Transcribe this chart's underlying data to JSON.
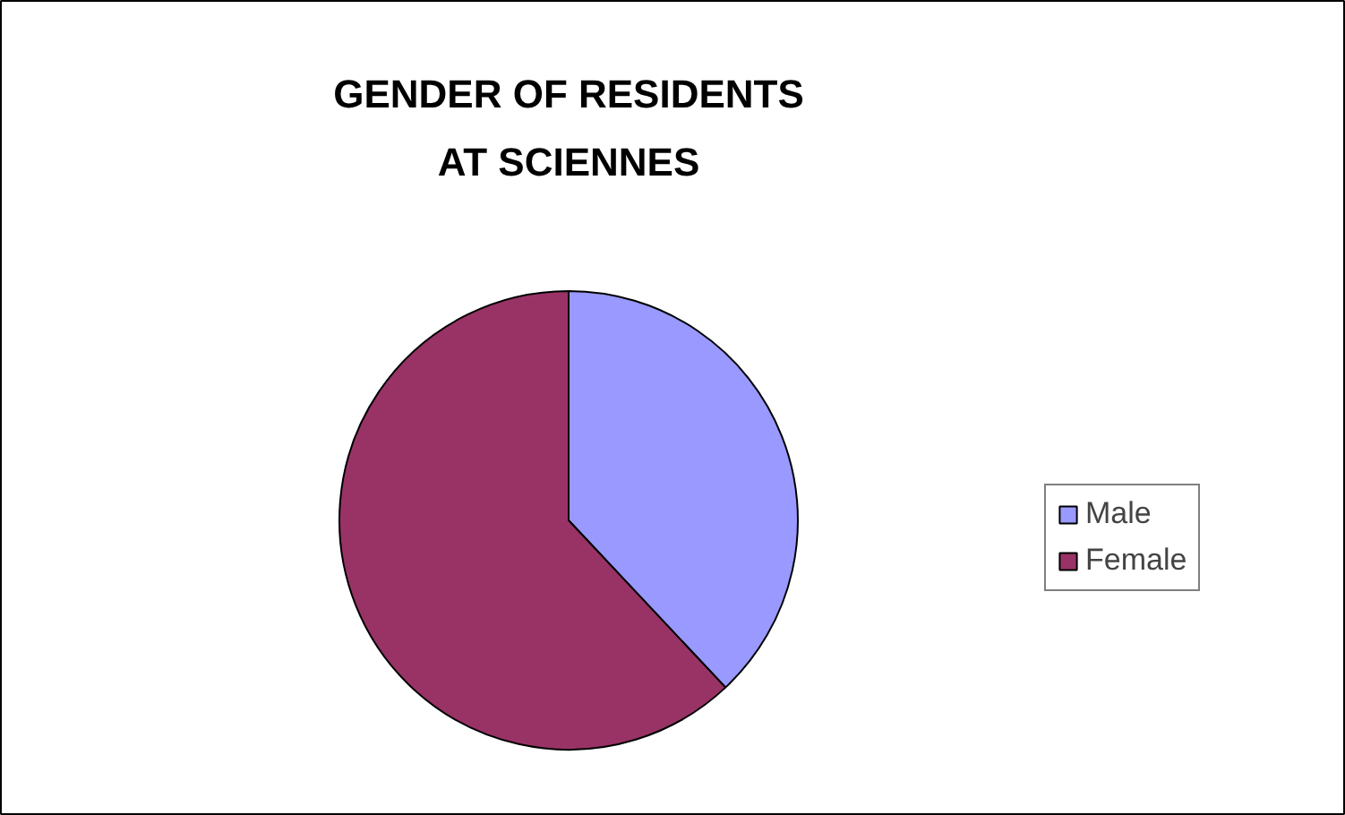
{
  "chart_data": {
    "type": "pie",
    "title": "GENDER OF RESIDENTS AT SCIENNES",
    "categories": [
      "Male",
      "Female"
    ],
    "values": [
      38,
      62
    ],
    "colors": [
      "#9999ff",
      "#993366"
    ],
    "legend": "right"
  }
}
